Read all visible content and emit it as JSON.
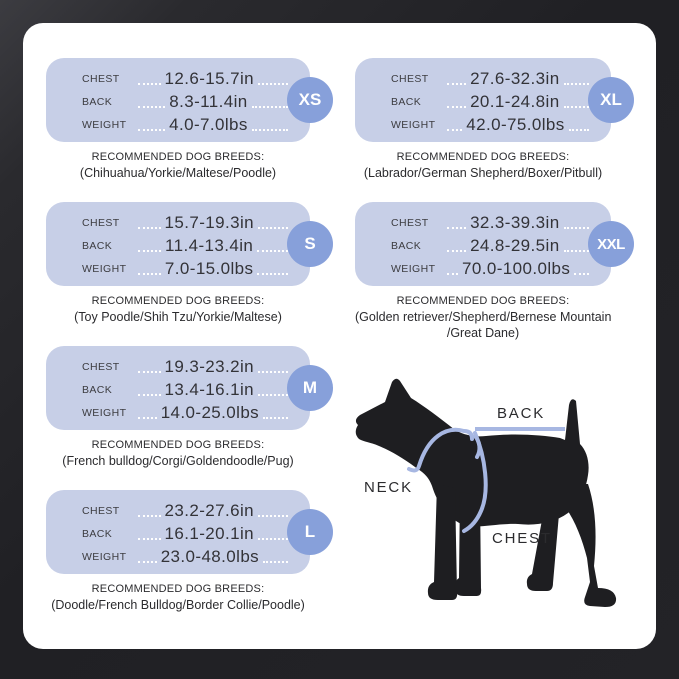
{
  "colors": {
    "frame_background": "#232327",
    "panel_background": "#ffffff",
    "card_background": "#c7cfe7",
    "badge_background": "#87a0da",
    "harness_line": "#a7b7e2",
    "dog_silhouette": "#1e1e21"
  },
  "size_chart": {
    "cards": [
      {
        "size": "XS",
        "column": "left",
        "measurements": [
          {
            "label": "CHEST",
            "value": "12.6-15.7in"
          },
          {
            "label": "BACK",
            "value": "8.3-11.4in"
          },
          {
            "label": "WEIGHT",
            "value": "4.0-7.0lbs"
          }
        ],
        "breeds_title": "RECOMMENDED DOG BREEDS:",
        "breeds_lines": [
          "(Chihuahua/Yorkie/Maltese/Poodle)"
        ]
      },
      {
        "size": "S",
        "column": "left",
        "measurements": [
          {
            "label": "CHEST",
            "value": "15.7-19.3in"
          },
          {
            "label": "BACK",
            "value": "11.4-13.4in"
          },
          {
            "label": "WEIGHT",
            "value": "7.0-15.0lbs"
          }
        ],
        "breeds_title": "RECOMMENDED DOG BREEDS:",
        "breeds_lines": [
          "(Toy Poodle/Shih Tzu/Yorkie/Maltese)"
        ]
      },
      {
        "size": "M",
        "column": "left",
        "measurements": [
          {
            "label": "CHEST",
            "value": "19.3-23.2in"
          },
          {
            "label": "BACK",
            "value": "13.4-16.1in"
          },
          {
            "label": "WEIGHT",
            "value": "14.0-25.0lbs"
          }
        ],
        "breeds_title": "RECOMMENDED DOG BREEDS:",
        "breeds_lines": [
          "(French bulldog/Corgi/Goldendoodle/Pug)"
        ]
      },
      {
        "size": "L",
        "column": "left",
        "measurements": [
          {
            "label": "CHEST",
            "value": "23.2-27.6in"
          },
          {
            "label": "BACK",
            "value": "16.1-20.1in"
          },
          {
            "label": "WEIGHT",
            "value": "23.0-48.0lbs"
          }
        ],
        "breeds_title": "RECOMMENDED DOG BREEDS:",
        "breeds_lines": [
          "(Doodle/French Bulldog/Border Collie/Poodle)"
        ]
      },
      {
        "size": "XL",
        "column": "right",
        "measurements": [
          {
            "label": "CHEST",
            "value": "27.6-32.3in"
          },
          {
            "label": "BACK",
            "value": "20.1-24.8in"
          },
          {
            "label": "WEIGHT",
            "value": "42.0-75.0lbs"
          }
        ],
        "breeds_title": "RECOMMENDED DOG BREEDS:",
        "breeds_lines": [
          "(Labrador/German Shepherd/Boxer/Pitbull)"
        ]
      },
      {
        "size": "XXL",
        "column": "right",
        "measurements": [
          {
            "label": "CHEST",
            "value": "32.3-39.3in"
          },
          {
            "label": "BACK",
            "value": "24.8-29.5in"
          },
          {
            "label": "WEIGHT",
            "value": "70.0-100.0lbs"
          }
        ],
        "breeds_title": "RECOMMENDED DOG BREEDS:",
        "breeds_lines": [
          "(Golden retriever/Shepherd/Bernese Mountain",
          "/Great Dane)"
        ]
      }
    ]
  },
  "diagram": {
    "back_label": "BACK",
    "neck_label": "NECK",
    "chest_label": "CHEST"
  }
}
